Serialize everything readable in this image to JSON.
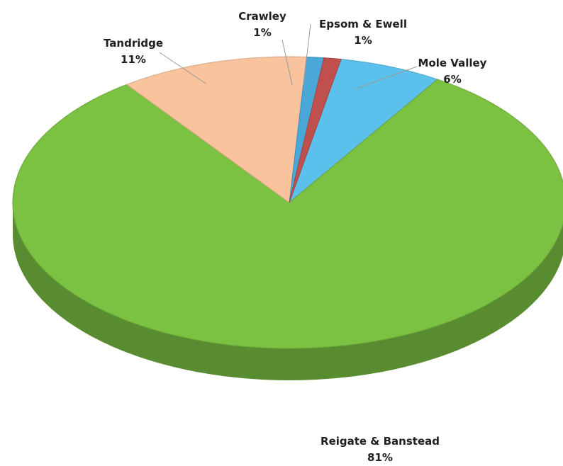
{
  "chart_data": {
    "type": "pie",
    "style": "3d",
    "title": "",
    "slices": [
      {
        "label": "Reigate & Banstead",
        "value": 81,
        "display": "81%",
        "color": "#7cc242"
      },
      {
        "label": "Tandridge",
        "value": 11,
        "display": "11%",
        "color": "#f9c49d"
      },
      {
        "label": "Crawley",
        "value": 1,
        "display": "1%",
        "color": "#4aa8d8"
      },
      {
        "label": "Epsom & Ewell",
        "value": 1,
        "display": "1%",
        "color": "#c0504d"
      },
      {
        "label": "Mole Valley",
        "value": 6,
        "display": "6%",
        "color": "#5bc0eb"
      }
    ],
    "legend": "none",
    "data_labels": "outside with leader lines"
  }
}
